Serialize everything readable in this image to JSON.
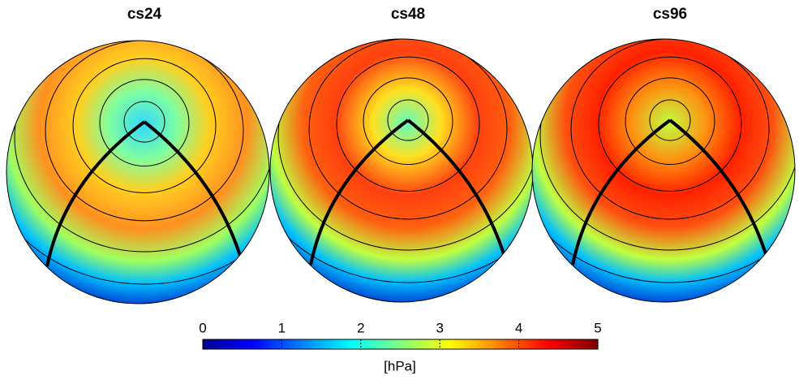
{
  "chart_data": [
    {
      "type": "polar-heatmap",
      "title": "cs24"
    },
    {
      "type": "polar-heatmap",
      "title": "cs48"
    },
    {
      "type": "polar-heatmap",
      "title": "cs96"
    }
  ],
  "colorbar": {
    "label": "[hPa]",
    "lim": [
      0,
      5
    ],
    "ticks": [
      0,
      1,
      2,
      3,
      4,
      5
    ]
  }
}
